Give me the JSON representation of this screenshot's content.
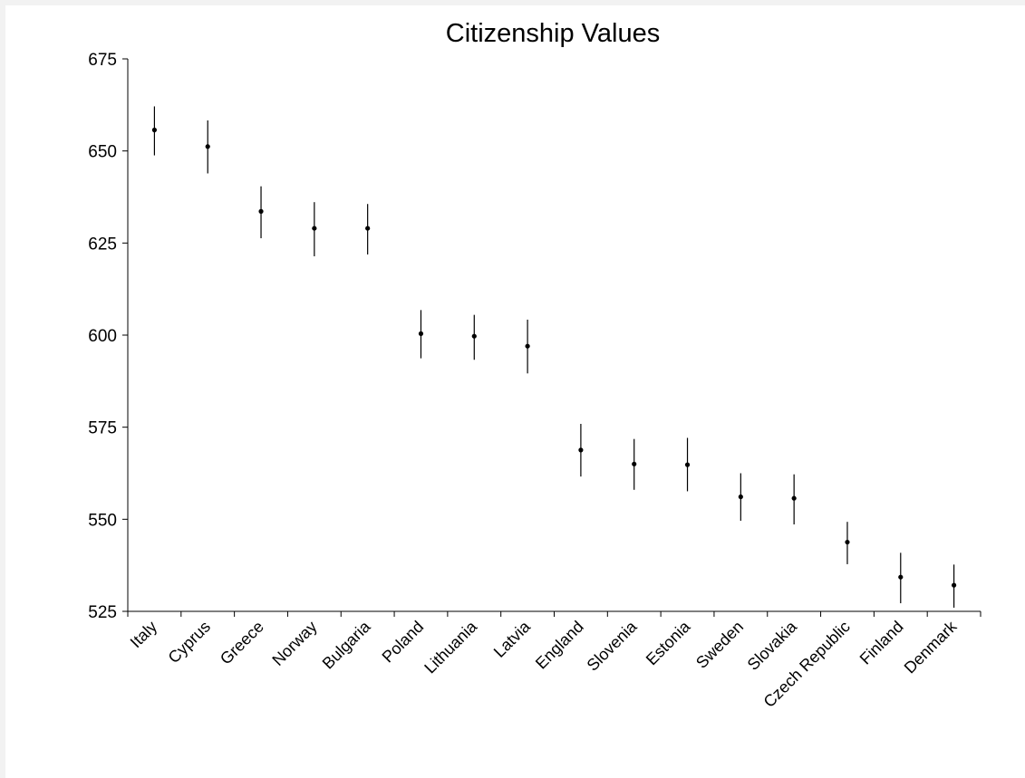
{
  "chart_data": {
    "type": "scatter",
    "title": "Citizenship Values",
    "xlabel": "",
    "ylabel": "",
    "ylim": [
      525,
      675
    ],
    "yticks": [
      525,
      550,
      575,
      600,
      625,
      650,
      675
    ],
    "grid": false,
    "legend": "none",
    "colors": {
      "marker": "#000000",
      "axis": "#000000"
    },
    "categories": [
      "Italy",
      "Cyprus",
      "Greece",
      "Norway",
      "Bulgaria",
      "Poland",
      "Lithuania",
      "Latvia",
      "England",
      "Slovenia",
      "Estonia",
      "Sweden",
      "Slovakia",
      "Czech Republic",
      "Finland",
      "Denmark"
    ],
    "series": [
      {
        "values": [
          655.7,
          651.2,
          633.6,
          629.0,
          629.0,
          600.4,
          599.7,
          597.0,
          568.8,
          565.0,
          564.8,
          556.1,
          555.7,
          543.8,
          534.3,
          532.1
        ],
        "error_low": [
          648.8,
          643.9,
          626.3,
          621.4,
          621.9,
          593.7,
          593.3,
          589.6,
          561.6,
          558.0,
          557.6,
          549.6,
          548.6,
          537.8,
          527.2,
          526.0
        ],
        "error_high": [
          662.1,
          658.3,
          640.4,
          636.1,
          635.6,
          606.8,
          605.5,
          604.2,
          575.9,
          571.8,
          572.1,
          562.5,
          562.2,
          549.3,
          540.9,
          537.7
        ]
      }
    ]
  }
}
